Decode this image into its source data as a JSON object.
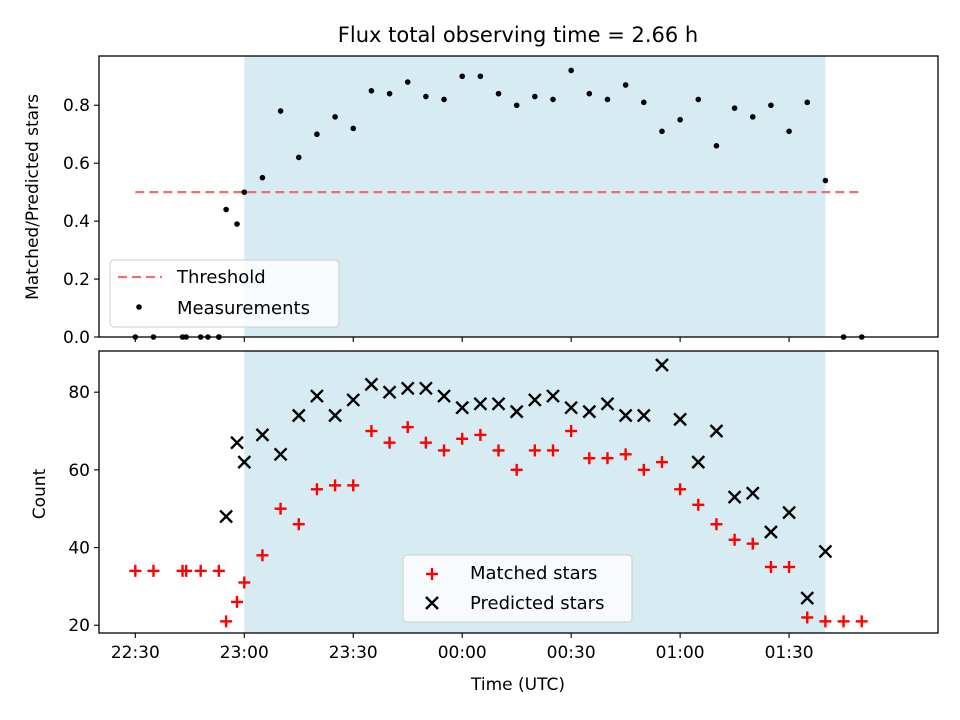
{
  "chart_data": [
    {
      "type": "scatter",
      "title": "Flux total observing time = 2.66 h",
      "xlabel": "",
      "ylabel": "Matched/Predicted stars",
      "ylim": [
        0,
        0.97
      ],
      "yticks": [
        0.0,
        0.2,
        0.4,
        0.6,
        0.8
      ],
      "ytick_labels": [
        "0.0",
        "0.2",
        "0.4",
        "0.6",
        "0.8"
      ],
      "xlim_minutes": [
        1340,
        1571
      ],
      "xticks_minutes": [
        1350,
        1380,
        1410,
        1440,
        1470,
        1500,
        1530
      ],
      "shaded_span_minutes": [
        1380,
        1540
      ],
      "threshold": {
        "name": "Threshold",
        "value": 0.5,
        "x_range_minutes": [
          1350,
          1550
        ],
        "color": "#f07070"
      },
      "legend": {
        "location": "lower-left",
        "entries": [
          "Threshold",
          "Measurements"
        ]
      },
      "series": [
        {
          "name": "Measurements",
          "color": "#000000",
          "points": [
            [
              1350,
              0.0
            ],
            [
              1355,
              0.0
            ],
            [
              1363,
              0.0
            ],
            [
              1364,
              0.0
            ],
            [
              1368,
              0.0
            ],
            [
              1373,
              0.0
            ],
            [
              1373,
              0.0
            ],
            [
              1375,
              0.44
            ],
            [
              1370,
              0.0
            ],
            [
              1380,
              0.5
            ],
            [
              1385,
              0.55
            ],
            [
              1390,
              0.78
            ],
            [
              1395,
              0.62
            ],
            [
              1400,
              0.7
            ],
            [
              1405,
              0.76
            ],
            [
              1410,
              0.72
            ],
            [
              1415,
              0.85
            ],
            [
              1420,
              0.84
            ],
            [
              1425,
              0.88
            ],
            [
              1430,
              0.83
            ],
            [
              1435,
              0.82
            ],
            [
              1440,
              0.9
            ],
            [
              1445,
              0.9
            ],
            [
              1450,
              0.84
            ],
            [
              1455,
              0.8
            ],
            [
              1460,
              0.83
            ],
            [
              1465,
              0.82
            ],
            [
              1470,
              0.92
            ],
            [
              1475,
              0.84
            ],
            [
              1480,
              0.82
            ],
            [
              1485,
              0.87
            ],
            [
              1490,
              0.81
            ],
            [
              1495,
              0.71
            ],
            [
              1500,
              0.75
            ],
            [
              1505,
              0.82
            ],
            [
              1510,
              0.66
            ],
            [
              1515,
              0.79
            ],
            [
              1520,
              0.76
            ],
            [
              1525,
              0.8
            ],
            [
              1530,
              0.71
            ],
            [
              1535,
              0.81
            ],
            [
              1540,
              0.54
            ],
            [
              1545,
              0.0
            ],
            [
              1550,
              0.0
            ],
            [
              1378,
              0.39
            ]
          ]
        }
      ]
    },
    {
      "type": "scatter",
      "title": "",
      "xlabel": "Time (UTC)",
      "ylabel": "Count",
      "ylim": [
        18,
        90.6
      ],
      "yticks": [
        20,
        40,
        60,
        80
      ],
      "ytick_labels": [
        "20",
        "40",
        "60",
        "80"
      ],
      "xlim_minutes": [
        1340,
        1571
      ],
      "xticks_minutes": [
        1350,
        1380,
        1410,
        1440,
        1470,
        1500,
        1530
      ],
      "xtick_labels": [
        "22:30",
        "23:00",
        "23:30",
        "00:00",
        "00:30",
        "01:00",
        "01:30"
      ],
      "shaded_span_minutes": [
        1380,
        1540
      ],
      "legend": {
        "location": "lower-center",
        "entries": [
          "Matched stars",
          "Predicted stars"
        ]
      },
      "series": [
        {
          "name": "Matched stars",
          "marker": "plus",
          "color": "#ff0000",
          "points": [
            [
              1350,
              34
            ],
            [
              1355,
              34
            ],
            [
              1363,
              34
            ],
            [
              1364,
              34
            ],
            [
              1368,
              34
            ],
            [
              1373,
              34
            ],
            [
              1375,
              21
            ],
            [
              1378,
              26
            ],
            [
              1380,
              31
            ],
            [
              1385,
              38
            ],
            [
              1390,
              50
            ],
            [
              1395,
              46
            ],
            [
              1400,
              55
            ],
            [
              1405,
              56
            ],
            [
              1410,
              56
            ],
            [
              1415,
              70
            ],
            [
              1420,
              67
            ],
            [
              1425,
              71
            ],
            [
              1430,
              67
            ],
            [
              1435,
              65
            ],
            [
              1440,
              68
            ],
            [
              1445,
              69
            ],
            [
              1450,
              65
            ],
            [
              1455,
              60
            ],
            [
              1460,
              65
            ],
            [
              1465,
              65
            ],
            [
              1470,
              70
            ],
            [
              1475,
              63
            ],
            [
              1480,
              63
            ],
            [
              1485,
              64
            ],
            [
              1490,
              60
            ],
            [
              1495,
              62
            ],
            [
              1500,
              55
            ],
            [
              1505,
              51
            ],
            [
              1510,
              46
            ],
            [
              1515,
              42
            ],
            [
              1520,
              41
            ],
            [
              1525,
              35
            ],
            [
              1530,
              35
            ],
            [
              1535,
              22
            ],
            [
              1540,
              21
            ],
            [
              1545,
              21
            ],
            [
              1550,
              21
            ]
          ]
        },
        {
          "name": "Predicted stars",
          "marker": "x",
          "color": "#000000",
          "points": [
            [
              1375,
              48
            ],
            [
              1378,
              67
            ],
            [
              1380,
              62
            ],
            [
              1385,
              69
            ],
            [
              1390,
              64
            ],
            [
              1395,
              74
            ],
            [
              1400,
              79
            ],
            [
              1405,
              74
            ],
            [
              1410,
              78
            ],
            [
              1415,
              82
            ],
            [
              1420,
              80
            ],
            [
              1425,
              81
            ],
            [
              1430,
              81
            ],
            [
              1435,
              79
            ],
            [
              1440,
              76
            ],
            [
              1445,
              77
            ],
            [
              1450,
              77
            ],
            [
              1455,
              75
            ],
            [
              1460,
              78
            ],
            [
              1465,
              79
            ],
            [
              1470,
              76
            ],
            [
              1475,
              75
            ],
            [
              1480,
              77
            ],
            [
              1485,
              74
            ],
            [
              1490,
              74
            ],
            [
              1495,
              87
            ],
            [
              1500,
              73
            ],
            [
              1505,
              62
            ],
            [
              1510,
              70
            ],
            [
              1515,
              53
            ],
            [
              1520,
              54
            ],
            [
              1525,
              44
            ],
            [
              1530,
              49
            ],
            [
              1535,
              27
            ],
            [
              1540,
              39
            ]
          ]
        }
      ]
    }
  ],
  "colors": {
    "shade": "#add8e6",
    "threshold": "#f07070",
    "matched": "#ff0000",
    "predicted": "#000000",
    "measurements": "#000000"
  }
}
